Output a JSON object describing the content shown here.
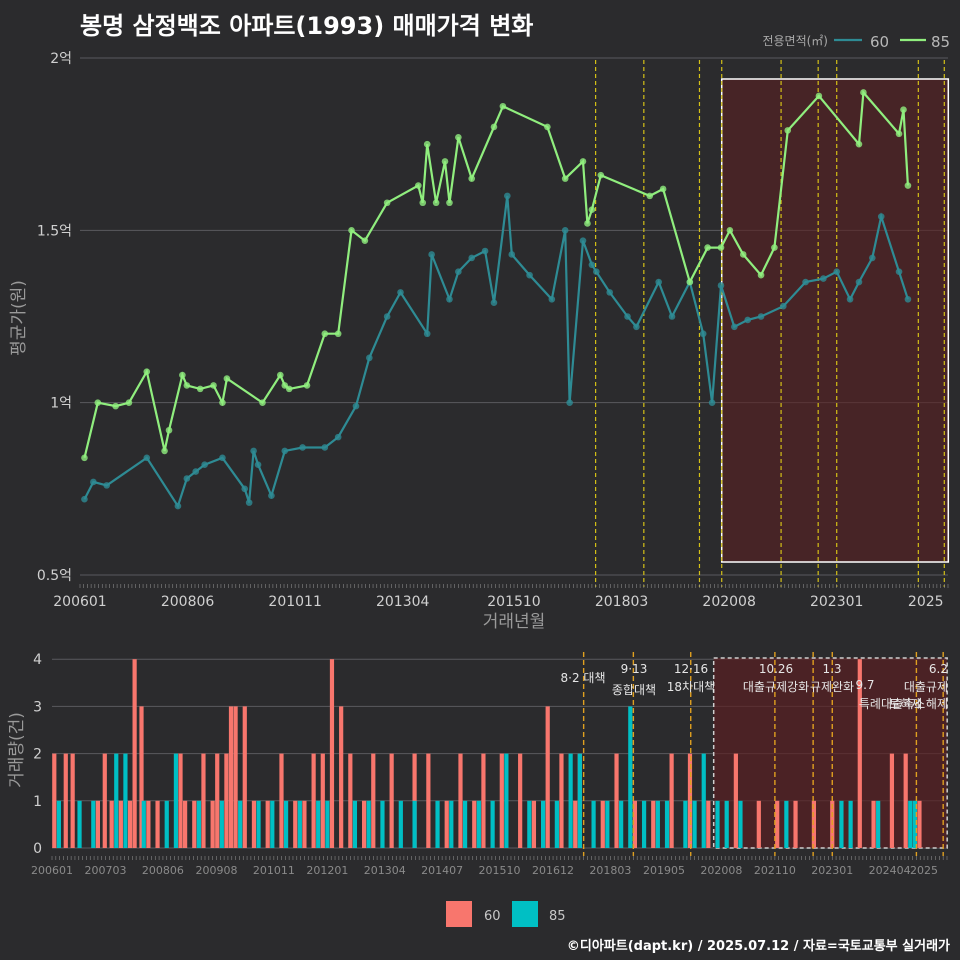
{
  "title": "봉명 삼정백조 아파트(1993) 매매가격 변화",
  "footer": "©디아파트(dapt.kr) / 2025.07.12 / 자료=국토교통부 실거래가",
  "colors": {
    "s60_price": "#2e8b94",
    "s85_price": "#90ee7e",
    "s60_vol": "#f8766d",
    "s85_vol": "#00bfc4",
    "policy": "#d4c017",
    "policy_lower": "#e0a020"
  },
  "chart_data": [
    {
      "type": "line",
      "title": "봉명 삼정백조 아파트(1993) 매매가격 변화",
      "xlabel": "거래년월",
      "ylabel": "평균가(원)",
      "x_ticks": [
        "200601",
        "200806",
        "201011",
        "201304",
        "201510",
        "201803",
        "202008",
        "202301",
        "2025"
      ],
      "y_ticks": [
        "0.5억",
        "1억",
        "1.5억",
        "2억"
      ],
      "ylim": [
        0.5,
        2.0
      ],
      "legend": {
        "title": "전용면적(㎡)",
        "placement": "top-right",
        "entries": [
          "60",
          "85"
        ]
      },
      "shaded_period": [
        "2020.06",
        "2025.06"
      ],
      "policy_lines": [
        "2017.08",
        "2018.09",
        "2019.12",
        "2020.06",
        "2021.10",
        "2022.08",
        "2023.01",
        "2024.11",
        "2025.06"
      ],
      "series": [
        {
          "name": "85",
          "points": [
            [
              2006.1,
              0.84
            ],
            [
              2006.4,
              1.0
            ],
            [
              2006.8,
              0.99
            ],
            [
              2007.1,
              1.0
            ],
            [
              2007.5,
              1.09
            ],
            [
              2007.9,
              0.86
            ],
            [
              2008.0,
              0.92
            ],
            [
              2008.3,
              1.08
            ],
            [
              2008.4,
              1.05
            ],
            [
              2008.7,
              1.04
            ],
            [
              2009.0,
              1.05
            ],
            [
              2009.2,
              1.0
            ],
            [
              2009.3,
              1.07
            ],
            [
              2010.1,
              1.0
            ],
            [
              2010.5,
              1.08
            ],
            [
              2010.6,
              1.05
            ],
            [
              2010.7,
              1.04
            ],
            [
              2011.1,
              1.05
            ],
            [
              2011.5,
              1.2
            ],
            [
              2011.8,
              1.2
            ],
            [
              2012.1,
              1.5
            ],
            [
              2012.4,
              1.47
            ],
            [
              2012.9,
              1.58
            ],
            [
              2013.6,
              1.63
            ],
            [
              2013.7,
              1.58
            ],
            [
              2013.8,
              1.75
            ],
            [
              2014.0,
              1.58
            ],
            [
              2014.2,
              1.7
            ],
            [
              2014.3,
              1.58
            ],
            [
              2014.5,
              1.77
            ],
            [
              2014.8,
              1.65
            ],
            [
              2015.3,
              1.8
            ],
            [
              2015.5,
              1.86
            ],
            [
              2016.5,
              1.8
            ],
            [
              2016.9,
              1.65
            ],
            [
              2017.3,
              1.7
            ],
            [
              2017.4,
              1.52
            ],
            [
              2017.5,
              1.56
            ],
            [
              2017.7,
              1.66
            ],
            [
              2018.8,
              1.6
            ],
            [
              2019.1,
              1.62
            ],
            [
              2019.7,
              1.35
            ],
            [
              2020.1,
              1.45
            ],
            [
              2020.4,
              1.45
            ],
            [
              2020.6,
              1.5
            ],
            [
              2020.9,
              1.43
            ],
            [
              2021.3,
              1.37
            ],
            [
              2021.6,
              1.45
            ],
            [
              2021.9,
              1.79
            ],
            [
              2022.6,
              1.89
            ],
            [
              2023.5,
              1.75
            ],
            [
              2023.6,
              1.9
            ],
            [
              2024.4,
              1.78
            ],
            [
              2024.5,
              1.85
            ],
            [
              2024.6,
              1.63
            ]
          ]
        },
        {
          "name": "60",
          "points": [
            [
              2006.1,
              0.72
            ],
            [
              2006.3,
              0.77
            ],
            [
              2006.6,
              0.76
            ],
            [
              2007.5,
              0.84
            ],
            [
              2008.2,
              0.7
            ],
            [
              2008.4,
              0.78
            ],
            [
              2008.6,
              0.8
            ],
            [
              2008.8,
              0.82
            ],
            [
              2009.2,
              0.84
            ],
            [
              2009.7,
              0.75
            ],
            [
              2009.8,
              0.71
            ],
            [
              2009.9,
              0.86
            ],
            [
              2010.0,
              0.82
            ],
            [
              2010.3,
              0.73
            ],
            [
              2010.6,
              0.86
            ],
            [
              2011.0,
              0.87
            ],
            [
              2011.5,
              0.87
            ],
            [
              2011.8,
              0.9
            ],
            [
              2012.2,
              0.99
            ],
            [
              2012.5,
              1.13
            ],
            [
              2012.9,
              1.25
            ],
            [
              2013.2,
              1.32
            ],
            [
              2013.8,
              1.2
            ],
            [
              2013.9,
              1.43
            ],
            [
              2014.3,
              1.3
            ],
            [
              2014.5,
              1.38
            ],
            [
              2014.8,
              1.42
            ],
            [
              2015.1,
              1.44
            ],
            [
              2015.3,
              1.29
            ],
            [
              2015.6,
              1.6
            ],
            [
              2015.7,
              1.43
            ],
            [
              2016.1,
              1.37
            ],
            [
              2016.6,
              1.3
            ],
            [
              2016.9,
              1.5
            ],
            [
              2017.0,
              1.0
            ],
            [
              2017.3,
              1.47
            ],
            [
              2017.5,
              1.4
            ],
            [
              2017.6,
              1.38
            ],
            [
              2017.9,
              1.32
            ],
            [
              2018.3,
              1.25
            ],
            [
              2018.5,
              1.22
            ],
            [
              2019.0,
              1.35
            ],
            [
              2019.3,
              1.25
            ],
            [
              2019.7,
              1.35
            ],
            [
              2020.0,
              1.2
            ],
            [
              2020.2,
              1.0
            ],
            [
              2020.4,
              1.34
            ],
            [
              2020.7,
              1.22
            ],
            [
              2021.0,
              1.24
            ],
            [
              2021.3,
              1.25
            ],
            [
              2021.8,
              1.28
            ],
            [
              2022.3,
              1.35
            ],
            [
              2022.7,
              1.36
            ],
            [
              2023.0,
              1.38
            ],
            [
              2023.3,
              1.3
            ],
            [
              2023.5,
              1.35
            ],
            [
              2023.8,
              1.42
            ],
            [
              2024.0,
              1.54
            ],
            [
              2024.4,
              1.38
            ],
            [
              2024.6,
              1.3
            ]
          ]
        }
      ]
    },
    {
      "type": "bar",
      "title": "",
      "xlabel": "",
      "ylabel": "거래량(건)",
      "x_ticks": [
        "200601",
        "200703",
        "200806",
        "200908",
        "201011",
        "201201",
        "201304",
        "201407",
        "201510",
        "201612",
        "201803",
        "201905",
        "202008",
        "202110",
        "202301",
        "202404",
        "2025"
      ],
      "y_ticks": [
        "0",
        "1",
        "2",
        "3",
        "4"
      ],
      "ylim": [
        0,
        4
      ],
      "legend": {
        "placement": "bottom",
        "entries": [
          "60",
          "85"
        ]
      },
      "shaded_period": [
        "2020.06",
        "2025.06"
      ],
      "policy_labels": [
        "8·2 대책",
        "9·13\n종합대책",
        "12·16\n18차대책",
        "10.26\n대출규제강화",
        "1.3\n규제완화",
        "9.7\n특례대출축소",
        "6.2\n대출규제",
        "토허제 해제"
      ],
      "series": [
        {
          "name": "60",
          "values": [
            [
              2006.05,
              2
            ],
            [
              2006.3,
              2
            ],
            [
              2006.45,
              2
            ],
            [
              2007.0,
              1
            ],
            [
              2007.15,
              2
            ],
            [
              2007.3,
              1
            ],
            [
              2007.5,
              1
            ],
            [
              2007.7,
              1
            ],
            [
              2007.8,
              4
            ],
            [
              2007.95,
              3
            ],
            [
              2008.1,
              1
            ],
            [
              2008.3,
              1
            ],
            [
              2008.8,
              2
            ],
            [
              2008.9,
              1
            ],
            [
              2009.1,
              1
            ],
            [
              2009.3,
              2
            ],
            [
              2009.5,
              1
            ],
            [
              2009.6,
              2
            ],
            [
              2009.8,
              2
            ],
            [
              2009.9,
              3
            ],
            [
              2010.0,
              3
            ],
            [
              2010.2,
              3
            ],
            [
              2010.4,
              1
            ],
            [
              2010.7,
              1
            ],
            [
              2011.0,
              2
            ],
            [
              2011.3,
              1
            ],
            [
              2011.5,
              1
            ],
            [
              2011.7,
              2
            ],
            [
              2011.9,
              2
            ],
            [
              2012.1,
              4
            ],
            [
              2012.3,
              3
            ],
            [
              2012.5,
              2
            ],
            [
              2012.8,
              1
            ],
            [
              2013.0,
              2
            ],
            [
              2013.4,
              2
            ],
            [
              2013.9,
              2
            ],
            [
              2014.2,
              2
            ],
            [
              2014.6,
              1
            ],
            [
              2014.9,
              2
            ],
            [
              2015.2,
              1
            ],
            [
              2015.4,
              2
            ],
            [
              2015.8,
              2
            ],
            [
              2016.2,
              2
            ],
            [
              2016.5,
              1
            ],
            [
              2016.8,
              3
            ],
            [
              2017.1,
              2
            ],
            [
              2017.4,
              1
            ],
            [
              2017.5,
              2
            ],
            [
              2018.0,
              1
            ],
            [
              2018.3,
              2
            ],
            [
              2018.7,
              1
            ],
            [
              2019.1,
              1
            ],
            [
              2019.5,
              2
            ],
            [
              2019.9,
              2
            ],
            [
              2020.3,
              1
            ],
            [
              2020.9,
              2
            ],
            [
              2021.4,
              1
            ],
            [
              2021.8,
              1
            ],
            [
              2022.2,
              1
            ],
            [
              2022.6,
              1
            ],
            [
              2023.0,
              1
            ],
            [
              2023.6,
              4
            ],
            [
              2023.9,
              1
            ],
            [
              2024.3,
              2
            ],
            [
              2024.6,
              2
            ],
            [
              2024.9,
              1
            ]
          ]
        },
        {
          "name": "85",
          "values": [
            [
              2006.15,
              1
            ],
            [
              2006.6,
              1
            ],
            [
              2006.9,
              1
            ],
            [
              2007.4,
              2
            ],
            [
              2007.6,
              2
            ],
            [
              2008.0,
              1
            ],
            [
              2008.5,
              1
            ],
            [
              2008.7,
              2
            ],
            [
              2009.2,
              1
            ],
            [
              2009.7,
              1
            ],
            [
              2010.1,
              1
            ],
            [
              2010.5,
              1
            ],
            [
              2010.8,
              1
            ],
            [
              2011.1,
              1
            ],
            [
              2011.4,
              1
            ],
            [
              2011.8,
              1
            ],
            [
              2012.0,
              1
            ],
            [
              2012.6,
              1
            ],
            [
              2012.9,
              1
            ],
            [
              2013.2,
              1
            ],
            [
              2013.6,
              1
            ],
            [
              2013.9,
              1
            ],
            [
              2014.4,
              1
            ],
            [
              2014.7,
              1
            ],
            [
              2015.0,
              1
            ],
            [
              2015.3,
              1
            ],
            [
              2015.6,
              1
            ],
            [
              2015.9,
              2
            ],
            [
              2016.4,
              1
            ],
            [
              2016.7,
              1
            ],
            [
              2017.0,
              1
            ],
            [
              2017.3,
              2
            ],
            [
              2017.5,
              2
            ],
            [
              2017.8,
              1
            ],
            [
              2018.1,
              1
            ],
            [
              2018.4,
              1
            ],
            [
              2018.6,
              3
            ],
            [
              2018.9,
              1
            ],
            [
              2019.2,
              1
            ],
            [
              2019.4,
              1
            ],
            [
              2019.8,
              1
            ],
            [
              2020.0,
              1
            ],
            [
              2020.2,
              2
            ],
            [
              2020.5,
              1
            ],
            [
              2020.7,
              1
            ],
            [
              2021.0,
              1
            ],
            [
              2022.0,
              1
            ],
            [
              2023.2,
              1
            ],
            [
              2023.4,
              1
            ],
            [
              2024.0,
              1
            ],
            [
              2024.7,
              1
            ],
            [
              2024.8,
              1
            ]
          ]
        }
      ]
    }
  ]
}
